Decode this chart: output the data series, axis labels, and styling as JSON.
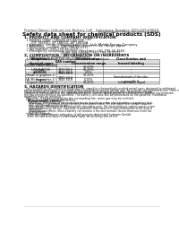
{
  "bg_color": "#ffffff",
  "header_left": "Product Name: Lithium Ion Battery Cell",
  "header_right_line1": "Substance Number: SDS-049-00019",
  "header_right_line2": "Established / Revision: Dec.7.2010",
  "title": "Safety data sheet for chemical products (SDS)",
  "section1_title": "1. PRODUCT AND COMPANY IDENTIFICATION",
  "section1_lines": [
    "  • Product name: Lithium Ion Battery Cell",
    "  • Product code: Cylindrical-type cell",
    "       (UF 18650U, UF 18650L, UF 18650A",
    "  • Company name:    Sanyo Electric Co., Ltd., Mobile Energy Company",
    "  • Address:         2001 Kamikosaka, Sumoto-City, Hyogo, Japan",
    "  • Telephone number: +81-799-26-4111",
    "  • Fax number: +81-799-26-4129",
    "  • Emergency telephone number (Weekday) +81-799-26-3562",
    "                                    (Night and holiday) +81-799-26-4101"
  ],
  "section2_title": "2. COMPOSITION / INFORMATION ON INGREDIENTS",
  "section2_intro": "  • Substance or preparation: Preparation",
  "section2_sub": "  • Information about the chemical nature of product:",
  "table_headers": [
    "Component\nchemical name",
    "CAS number",
    "Concentration /\nConcentration range",
    "Classification and\nhazard labeling"
  ],
  "table_col1": [
    "Several name",
    "Lithium cobalt tantalite\n(LiMnCoNiO4)",
    "Iron",
    "Aluminum",
    "Graphite\n(Made in graphite-1)\n(AI-Mo in graphite-1)",
    "Copper",
    "Organic electrolyte"
  ],
  "table_col2": [
    "-",
    "-",
    "7439-89-6",
    "7429-90-5",
    "7782-42-5\n7782-44-0",
    "7440-50-8",
    "-"
  ],
  "table_col3": [
    "",
    "30-60%",
    "10-25%",
    "2-5%",
    "10-20%",
    "5-15%",
    "10-20%"
  ],
  "table_col4": [
    "",
    "",
    "-",
    "-",
    "-",
    "Sensitization of the skin\ngroup No.2",
    "Inflammable liquid"
  ],
  "section3_title": "3. HAZARDS IDENTIFICATION",
  "section3_para1": "  For this battery cell, chemical materials are stored in a hermetically sealed metal case, designed to withstand",
  "section3_para2": "temperatures generated in electrode-plate-combination during normal use. As a result, during normal-use, there is no",
  "section3_para3": "physical danger of ignition or explosion and there is no danger of hazardous materials leakage.",
  "section3_para4": "  However, if exposed to a fire, added mechanical shocks, decomposed, or meet electric without any measure,",
  "section3_para5": "the gas release vent-on be operated. The battery cell case will be penetrated all fire-patterns, hazardous",
  "section3_para6": "materials may be released.",
  "section3_para7": "  Moreover, if heated strongly by the surrounding fire, some gas may be emitted.",
  "section3_bullet1": "  • Most important hazard and effects:",
  "section3_human": "    Human health effects:",
  "section3_human_lines": [
    "      Inhalation: The release of the electrolyte has an anesthesia action and stimulates a respiratory tract.",
    "      Skin contact: The release of the electrolyte stimulates a skin. The electrolyte skin contact causes a",
    "      sore and stimulation on the skin.",
    "      Eye contact: The release of the electrolyte stimulates eyes. The electrolyte eye contact causes a sore",
    "      and stimulation on the eye. Especially, a substance that causes a strong inflammation of the eyes is",
    "      contained.",
    "      Environmental effects: Since a battery cell remains in the environment, do not throw out it into the",
    "      environment."
  ],
  "section3_specific": "  • Specific hazards:",
  "section3_specific_lines": [
    "    If the electrolyte contacts with water, it will generate detrimental hydrogen fluoride.",
    "    Since the said electrolyte is inflammable liquid, do not bring close to fire."
  ]
}
